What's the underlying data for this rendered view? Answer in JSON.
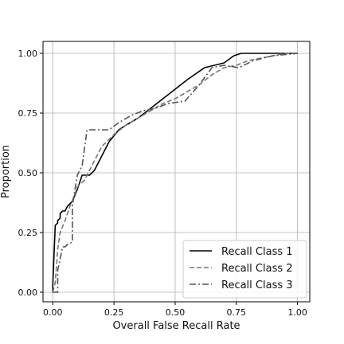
{
  "chart_data": {
    "type": "line",
    "xlabel": "Overall False Recall Rate",
    "ylabel": "Proportion",
    "xlim": [
      -0.04,
      1.05
    ],
    "ylim": [
      -0.04,
      1.05
    ],
    "xticks": [
      0,
      0.25,
      0.5,
      0.75,
      1
    ],
    "yticks": [
      0,
      0.25,
      0.5,
      0.75,
      1
    ],
    "xtick_labels": [
      "0.00",
      "0.25",
      "0.50",
      "0.75",
      "1.00"
    ],
    "ytick_labels": [
      "0.00",
      "0.25",
      "0.50",
      "0.75",
      "1.00"
    ],
    "grid": true,
    "legend_position": "lower-right",
    "series": [
      {
        "name": "Recall Class 1",
        "color": "#000000",
        "style": "solid",
        "x": [
          0.0,
          0.0,
          0.01,
          0.02,
          0.02,
          0.03,
          0.03,
          0.04,
          0.05,
          0.06,
          0.07,
          0.08,
          0.1,
          0.12,
          0.15,
          0.17,
          0.2,
          0.23,
          0.27,
          0.3,
          0.35,
          0.4,
          0.45,
          0.5,
          0.55,
          0.62,
          0.7,
          0.74,
          0.77,
          0.8,
          0.85,
          0.9,
          1.0
        ],
        "y": [
          0.0,
          0.03,
          0.28,
          0.29,
          0.3,
          0.31,
          0.33,
          0.34,
          0.34,
          0.36,
          0.37,
          0.38,
          0.43,
          0.49,
          0.49,
          0.51,
          0.57,
          0.63,
          0.68,
          0.7,
          0.73,
          0.77,
          0.81,
          0.85,
          0.89,
          0.94,
          0.96,
          0.99,
          1.0,
          1.0,
          1.0,
          1.0,
          1.0
        ]
      },
      {
        "name": "Recall Class 2",
        "color": "#777777",
        "style": "dashed",
        "x": [
          0.0,
          0.01,
          0.02,
          0.03,
          0.05,
          0.07,
          0.09,
          0.1,
          0.13,
          0.15,
          0.18,
          0.2,
          0.25,
          0.3,
          0.35,
          0.4,
          0.45,
          0.5,
          0.55,
          0.6,
          0.65,
          0.7,
          0.75,
          0.8,
          0.85,
          0.9,
          0.95,
          1.0
        ],
        "y": [
          0.0,
          0.04,
          0.18,
          0.25,
          0.3,
          0.36,
          0.41,
          0.44,
          0.47,
          0.51,
          0.57,
          0.61,
          0.66,
          0.7,
          0.73,
          0.76,
          0.79,
          0.81,
          0.84,
          0.87,
          0.91,
          0.94,
          0.95,
          0.97,
          0.98,
          0.99,
          1.0,
          1.0
        ]
      },
      {
        "name": "Recall Class 3",
        "color": "#555555",
        "style": "dashdot",
        "x": [
          0.0,
          0.0,
          0.02,
          0.02,
          0.04,
          0.05,
          0.06,
          0.08,
          0.08,
          0.1,
          0.12,
          0.14,
          0.17,
          0.2,
          0.23,
          0.27,
          0.32,
          0.37,
          0.42,
          0.47,
          0.54,
          0.6,
          0.65,
          0.7,
          0.76,
          0.82,
          0.9,
          1.0
        ],
        "y": [
          0.0,
          0.0,
          0.0,
          0.09,
          0.19,
          0.19,
          0.2,
          0.21,
          0.36,
          0.49,
          0.53,
          0.68,
          0.68,
          0.68,
          0.68,
          0.71,
          0.74,
          0.76,
          0.77,
          0.79,
          0.8,
          0.87,
          0.94,
          0.95,
          0.94,
          0.97,
          0.99,
          1.0
        ]
      }
    ]
  }
}
